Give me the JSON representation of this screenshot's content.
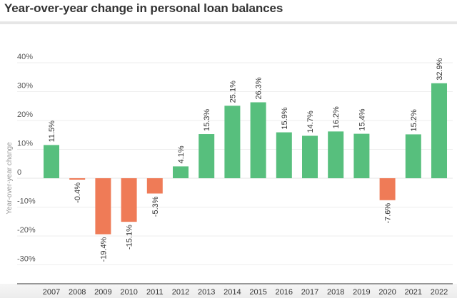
{
  "title": "Year-over-year change in personal loan balances",
  "colors": {
    "positive": "#57bf7d",
    "negative": "#ef7b57",
    "grid": "#eeeeee",
    "axis": "#777777",
    "text": "#333333",
    "tick_text": "#555555"
  },
  "chart_data": {
    "type": "bar",
    "title": "Year-over-year change in personal loan balances",
    "xlabel": "",
    "ylabel": "Year-over-year change",
    "categories": [
      "2007",
      "2008",
      "2009",
      "2010",
      "2011",
      "2012",
      "2013",
      "2014",
      "2015",
      "2016",
      "2017",
      "2018",
      "2019",
      "2020",
      "2021",
      "2022"
    ],
    "values": [
      11.5,
      -0.4,
      -19.4,
      -15.1,
      -5.3,
      4.1,
      15.3,
      25.1,
      26.3,
      15.9,
      14.7,
      16.2,
      15.4,
      -7.6,
      15.2,
      32.9
    ],
    "value_labels": [
      "11.5%",
      "-0.4%",
      "-19.4%",
      "-15.1%",
      "-5.3%",
      "4.1%",
      "15.3%",
      "25.1%",
      "26.3%",
      "15.9%",
      "14.7%",
      "16.2%",
      "15.4%",
      "-7.6%",
      "15.2%",
      "32.9%"
    ],
    "yticks": [
      40,
      30,
      20,
      10,
      0,
      -10,
      -20,
      -30
    ],
    "ytick_labels": [
      "40%",
      "30%",
      "20%",
      "10%",
      "0",
      "-10%",
      "-20%",
      "-30%"
    ],
    "ylim": [
      -33,
      42
    ],
    "grid": true,
    "legend": null
  }
}
